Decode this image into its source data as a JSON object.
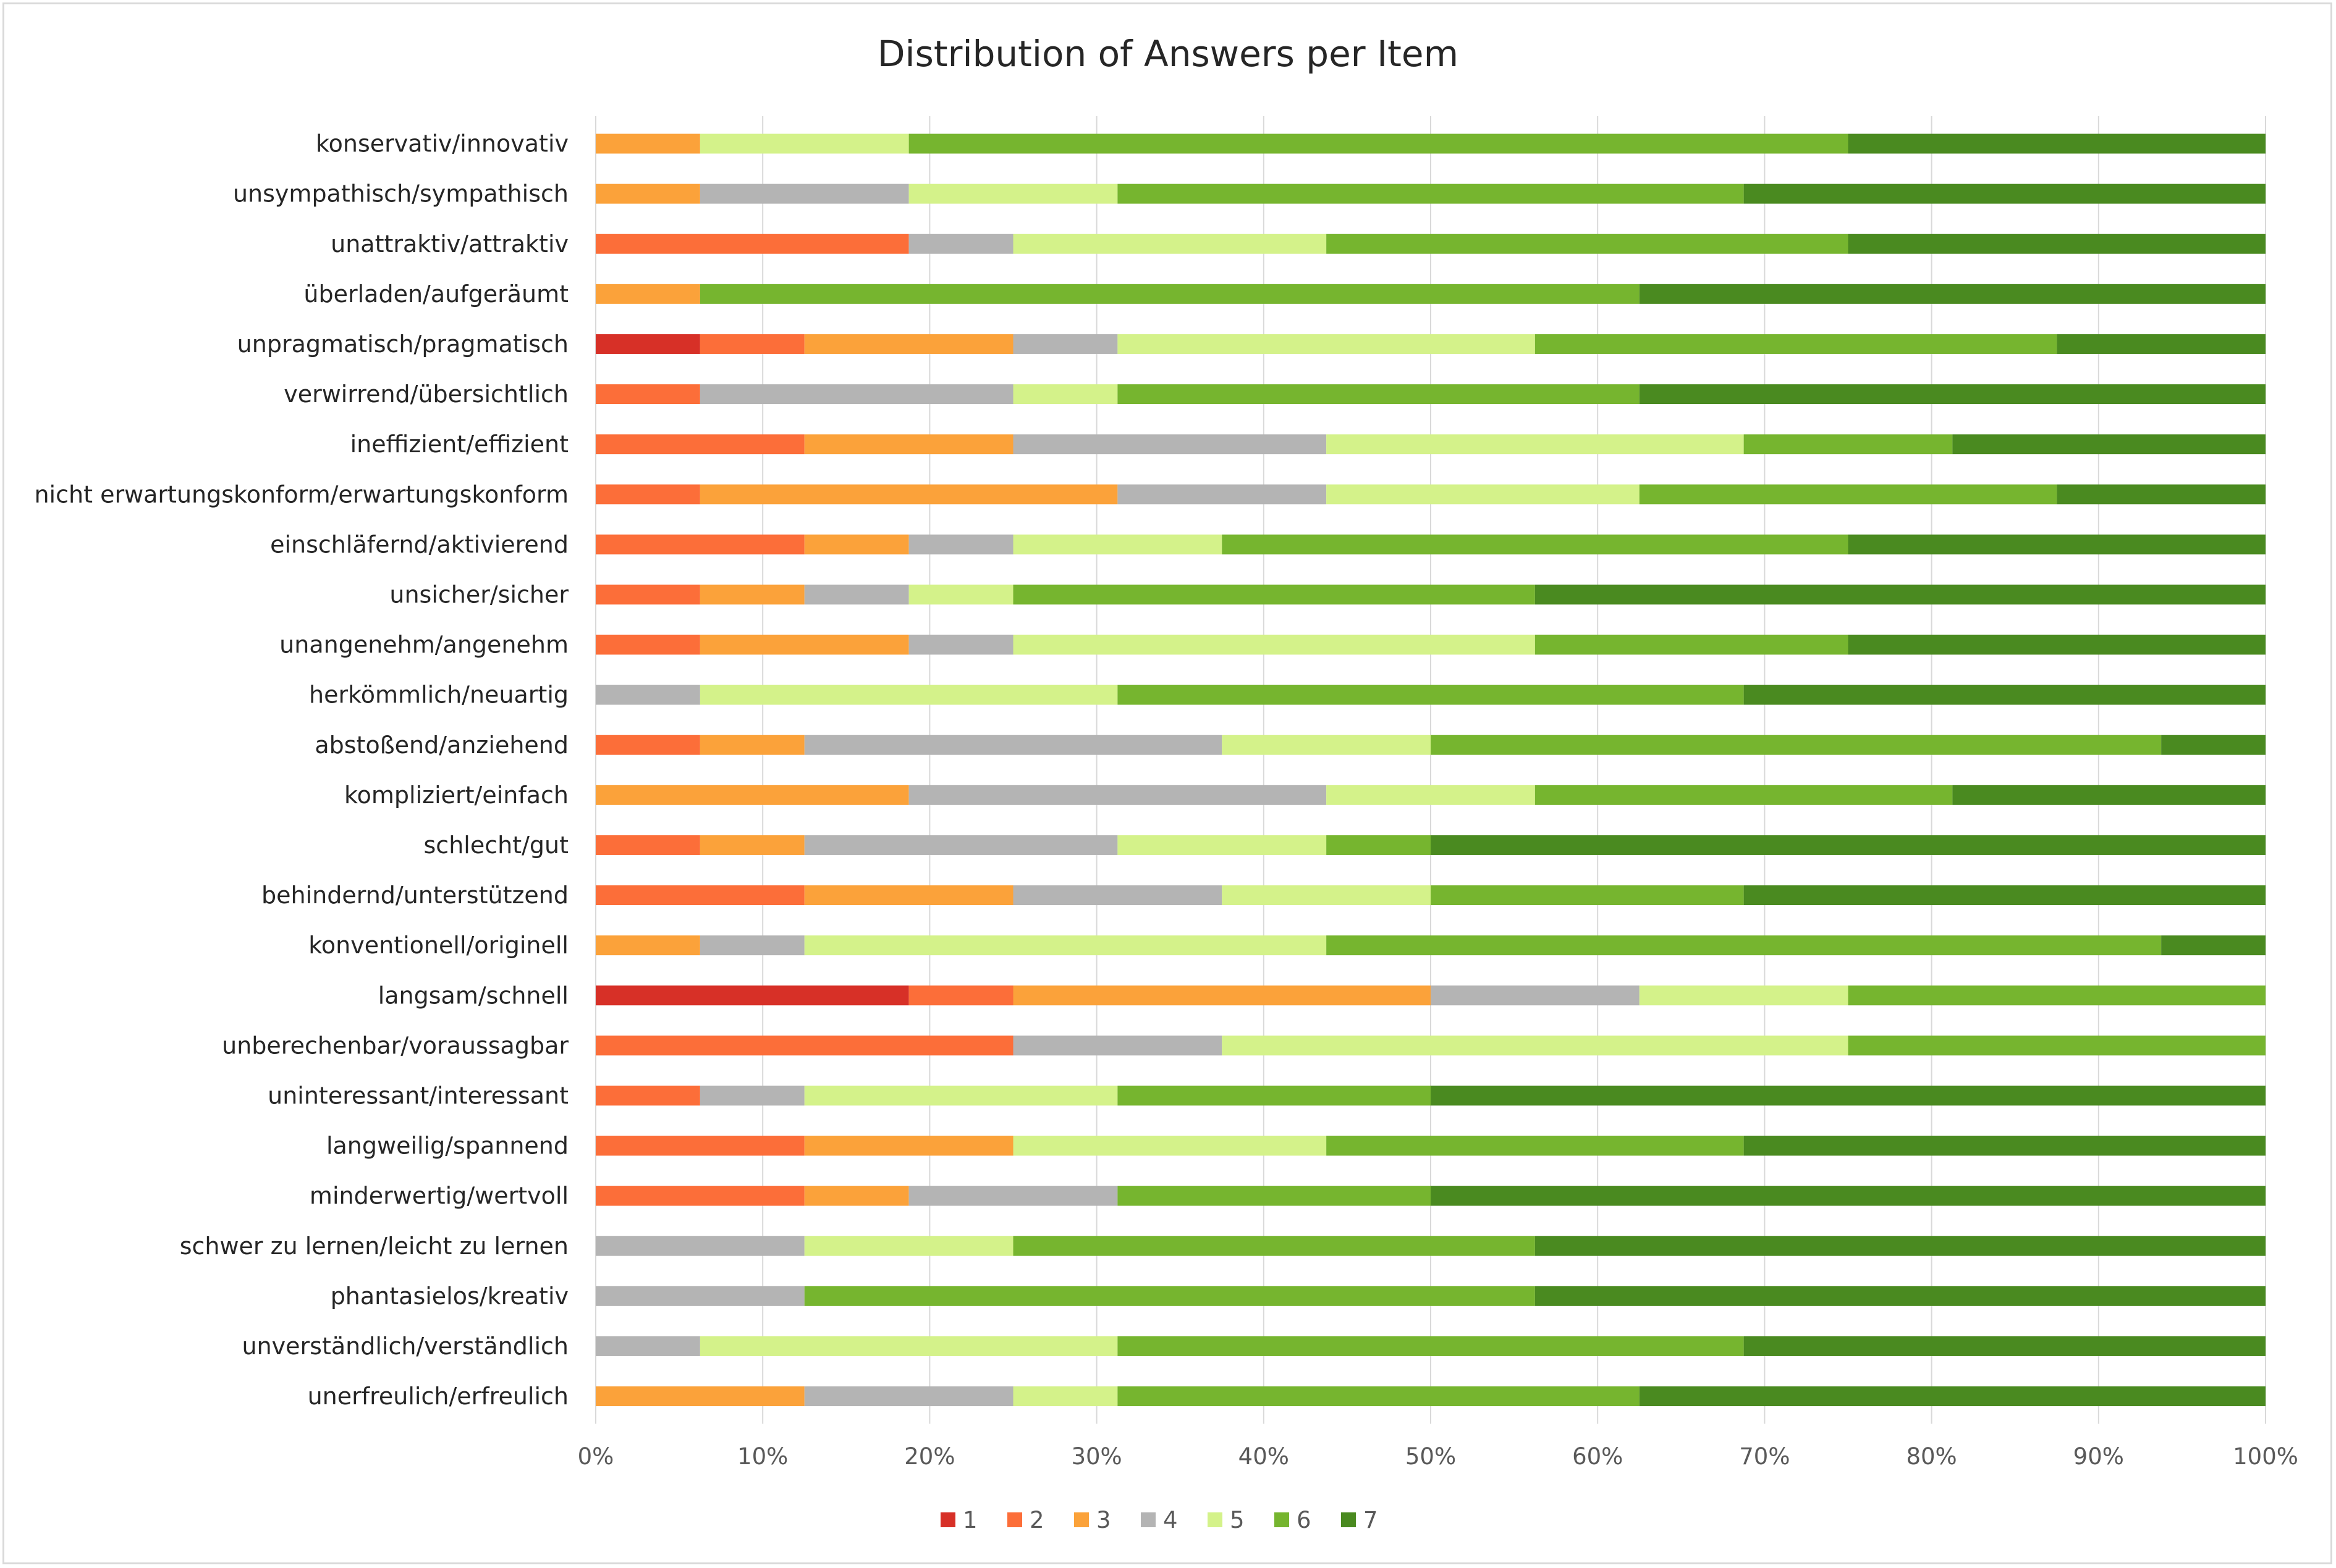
{
  "chart_data": {
    "type": "bar",
    "orientation": "horizontal",
    "stacked": "percent",
    "title": "Distribution of Answers per Item",
    "xlim": [
      0,
      100
    ],
    "x_ticks": [
      "0%",
      "10%",
      "20%",
      "30%",
      "40%",
      "50%",
      "60%",
      "70%",
      "80%",
      "90%",
      "100%"
    ],
    "grid": "vertical",
    "legend_position": "bottom",
    "categories": [
      "konservativ/innovativ",
      "unsympathisch/sympathisch",
      "unattraktiv/attraktiv",
      "überladen/aufgeräumt",
      "unpragmatisch/pragmatisch",
      "verwirrend/übersichtlich",
      "ineffizient/effizient",
      "nicht erwartungskonform/erwartungskonform",
      "einschläfernd/aktivierend",
      "unsicher/sicher",
      "unangenehm/angenehm",
      "herkömmlich/neuartig",
      "abstoßend/anziehend",
      "kompliziert/einfach",
      "schlecht/gut",
      "behindernd/unterstützend",
      "konventionell/originell",
      "langsam/schnell",
      "unberechenbar/voraussagbar",
      "uninteressant/interessant",
      "langweilig/spannend",
      "minderwertig/wertvoll",
      "schwer zu lernen/leicht zu lernen",
      "phantasielos/kreativ",
      "unverständlich/verständlich",
      "unerfreulich/erfreulich"
    ],
    "series": [
      {
        "name": "1",
        "color": "#d73027",
        "values": [
          0,
          0,
          0,
          0,
          6.25,
          0,
          0,
          0,
          0,
          0,
          0,
          0,
          0,
          0,
          0,
          0,
          0,
          18.75,
          0,
          0,
          0,
          0,
          0,
          0,
          0,
          0
        ]
      },
      {
        "name": "2",
        "color": "#fc6e39",
        "values": [
          0,
          0,
          18.75,
          0,
          6.25,
          6.25,
          12.5,
          6.25,
          12.5,
          6.25,
          6.25,
          0,
          6.25,
          0,
          6.25,
          12.5,
          0,
          6.25,
          25,
          6.25,
          12.5,
          12.5,
          0,
          0,
          0,
          0
        ]
      },
      {
        "name": "3",
        "color": "#fba23a",
        "values": [
          6.25,
          6.25,
          0,
          6.25,
          12.5,
          0,
          12.5,
          25,
          6.25,
          6.25,
          12.5,
          0,
          6.25,
          18.75,
          6.25,
          12.5,
          6.25,
          25,
          0,
          0,
          12.5,
          6.25,
          0,
          0,
          0,
          12.5
        ]
      },
      {
        "name": "4",
        "color": "#b4b4b4",
        "values": [
          0,
          12.5,
          6.25,
          0,
          6.25,
          18.75,
          18.75,
          12.5,
          6.25,
          6.25,
          6.25,
          6.25,
          25,
          25,
          18.75,
          12.5,
          6.25,
          12.5,
          12.5,
          6.25,
          0,
          12.5,
          12.5,
          12.5,
          6.25,
          12.5
        ]
      },
      {
        "name": "5",
        "color": "#d4f28a",
        "values": [
          12.5,
          12.5,
          18.75,
          0,
          25,
          6.25,
          25,
          18.75,
          12.5,
          6.25,
          31.25,
          25,
          12.5,
          12.5,
          12.5,
          12.5,
          31.25,
          12.5,
          37.5,
          18.75,
          18.75,
          0,
          12.5,
          0,
          25,
          6.25
        ]
      },
      {
        "name": "6",
        "color": "#76b52f",
        "values": [
          56.25,
          37.5,
          31.25,
          56.25,
          31.25,
          31.25,
          12.5,
          25,
          37.5,
          31.25,
          18.75,
          37.5,
          43.75,
          25,
          6.25,
          18.75,
          50,
          25,
          25,
          18.75,
          25,
          18.75,
          31.25,
          43.75,
          37.5,
          31.25
        ]
      },
      {
        "name": "7",
        "color": "#4a8a20",
        "values": [
          25,
          31.25,
          25,
          37.5,
          12.5,
          37.5,
          18.75,
          12.5,
          25,
          43.75,
          25,
          31.25,
          6.25,
          18.75,
          50,
          31.25,
          6.25,
          0,
          0,
          50,
          31.25,
          50,
          43.75,
          43.75,
          31.25,
          37.5
        ]
      }
    ]
  }
}
